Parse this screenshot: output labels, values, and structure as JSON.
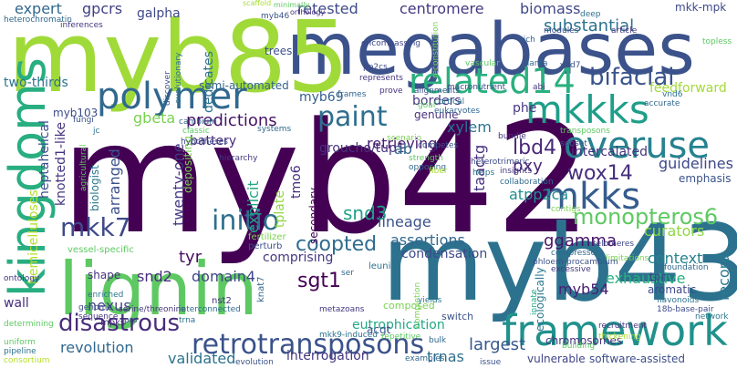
{
  "words": [
    {
      "text": "myb42",
      "color": "#440154"
    },
    {
      "text": "megabases",
      "color": "#3b528b"
    },
    {
      "text": "myb85",
      "color": "#a0da39"
    },
    {
      "text": "myb43",
      "color": "#2c728e"
    },
    {
      "text": "lignin",
      "color": "#5ec962"
    },
    {
      "text": "framework",
      "color": "#21918c"
    },
    {
      "text": "kingdoms",
      "color": "#28ae80"
    },
    {
      "text": "polymer",
      "color": "#31688e"
    },
    {
      "text": "retrotransposons",
      "color": "#3b528b"
    },
    {
      "text": "related14",
      "color": "#2ab07f"
    },
    {
      "text": "mkkks",
      "color": "#1f9e89"
    },
    {
      "text": "overuse",
      "color": "#26828e"
    },
    {
      "text": "mkks",
      "color": "#365c8d"
    },
    {
      "text": "disastrous",
      "color": "#472d7b"
    },
    {
      "text": "initio",
      "color": "#2d708e"
    },
    {
      "text": "paint",
      "color": "#2e6f8e"
    },
    {
      "text": "mkk7",
      "color": "#3e4989"
    },
    {
      "text": "coopted",
      "color": "#2f6c8e"
    },
    {
      "text": "bifacial",
      "color": "#3a548c"
    },
    {
      "text": "monopteros6",
      "color": "#5ec962"
    },
    {
      "text": "wox14",
      "color": "#472f7d"
    },
    {
      "text": "sgt1",
      "color": "#440154"
    },
    {
      "text": "lbd4",
      "color": "#482878"
    },
    {
      "text": "predictions",
      "color": "#471365"
    },
    {
      "text": "expert",
      "color": "#31688e"
    },
    {
      "text": "gpcrs",
      "color": "#424086"
    },
    {
      "text": "galpha",
      "color": "#3f4889"
    },
    {
      "text": "biomass",
      "color": "#3f4788"
    },
    {
      "text": "substantial",
      "color": "#2c728e"
    },
    {
      "text": "retested",
      "color": "#3e4a89"
    },
    {
      "text": "centromere",
      "color": "#453781"
    },
    {
      "text": "mkk-mpk",
      "color": "#3e4989"
    },
    {
      "text": "two-thirds",
      "color": "#2c728e"
    },
    {
      "text": "myb69",
      "color": "#355f8d"
    },
    {
      "text": "groucho/tup1",
      "color": "#46327e"
    },
    {
      "text": "gbeta",
      "color": "#7ad151"
    },
    {
      "text": "battery",
      "color": "#472a7a"
    },
    {
      "text": "myb103",
      "color": "#3e4c8a"
    },
    {
      "text": "heptahelical",
      "color": "#3c4f8a"
    },
    {
      "text": "knotted1-like",
      "color": "#46337e"
    },
    {
      "text": "biologist",
      "color": "#2a788e"
    },
    {
      "text": "arranged",
      "color": "#3b528b"
    },
    {
      "text": "twenty-one",
      "color": "#453882"
    },
    {
      "text": "explicit",
      "color": "#21a685"
    },
    {
      "text": "tmo6",
      "color": "#472c7a"
    },
    {
      "text": "secondary",
      "color": "#440154"
    },
    {
      "text": "retrieving",
      "color": "#481f70"
    },
    {
      "text": "xylem",
      "color": "#2c728e"
    },
    {
      "text": "phe",
      "color": "#453781"
    },
    {
      "text": "intercalated",
      "color": "#46337e"
    },
    {
      "text": "guidelines",
      "color": "#3e4989"
    },
    {
      "text": "emphasis",
      "color": "#3b528b"
    },
    {
      "text": "pxy",
      "color": "#482576"
    },
    {
      "text": "atpp2ca",
      "color": "#228d8d"
    },
    {
      "text": "taactg",
      "color": "#46307e"
    },
    {
      "text": "snd3",
      "color": "#1fa088"
    },
    {
      "text": "lineage",
      "color": "#3b528b"
    },
    {
      "text": "assertions",
      "color": "#31688e"
    },
    {
      "text": "condensation",
      "color": "#3e4989"
    },
    {
      "text": "ggamma",
      "color": "#481467"
    },
    {
      "text": "context",
      "color": "#26828e"
    },
    {
      "text": "record",
      "color": "#2a788e"
    },
    {
      "text": "curators",
      "color": "#8fd744"
    },
    {
      "text": "tyr",
      "color": "#471063"
    },
    {
      "text": "snd2",
      "color": "#472d7b"
    },
    {
      "text": "domain4",
      "color": "#3f4788"
    },
    {
      "text": "nexus",
      "color": "#414487"
    },
    {
      "text": "comprising",
      "color": "#453781"
    },
    {
      "text": "eutrophication",
      "color": "#22a884"
    },
    {
      "text": "revolution",
      "color": "#31688e"
    },
    {
      "text": "validated",
      "color": "#2c728e"
    },
    {
      "text": "interrogation",
      "color": "#453781"
    },
    {
      "text": "largest",
      "color": "#38588c"
    },
    {
      "text": "trnas",
      "color": "#2e6e8e"
    },
    {
      "text": "myb54",
      "color": "#482173"
    },
    {
      "text": "exhaustive",
      "color": "#29af7f"
    },
    {
      "text": "software-assisted",
      "color": "#3d4e8a"
    },
    {
      "text": "vulnerable",
      "color": "#404588"
    },
    {
      "text": "aromatic",
      "color": "#3f4889"
    },
    {
      "text": "hemicelluloses",
      "color": "#b5de2b"
    },
    {
      "text": "wall",
      "color": "#472e7c"
    },
    {
      "text": "feedforward",
      "color": "#a2da37"
    },
    {
      "text": "borders",
      "color": "#453781"
    },
    {
      "text": "genuine",
      "color": "#46327e"
    },
    {
      "text": "semi-automated",
      "color": "#33638d"
    },
    {
      "text": "dedicates",
      "color": "#2c728e"
    },
    {
      "text": "trees",
      "color": "#3b528b"
    },
    {
      "text": "ab",
      "color": "#31688e"
    },
    {
      "text": "tpr",
      "color": "#3e4989"
    },
    {
      "text": "chromosomes",
      "color": "#46327e"
    },
    {
      "text": "ecologically",
      "color": "#2a788e"
    },
    {
      "text": "acgt",
      "color": "#3b528b"
    },
    {
      "text": "shape",
      "color": "#46327e"
    },
    {
      "text": "mpks",
      "color": "#472c7a"
    },
    {
      "text": "vessel-specific",
      "color": "#5ec962"
    },
    {
      "text": "depositing",
      "color": "#7ad151"
    },
    {
      "text": "tplate",
      "color": "#90d743"
    },
    {
      "text": "scaffold",
      "color": "#a8db34"
    },
    {
      "text": "heterochromatin",
      "color": "#31688e"
    },
    {
      "text": "minimally",
      "color": "#5ec962"
    },
    {
      "text": "orthology",
      "color": "#46327e"
    },
    {
      "text": "inferences",
      "color": "#453781"
    },
    {
      "text": "leunig",
      "color": "#2c728e"
    },
    {
      "text": "composed",
      "color": "#7ad151"
    },
    {
      "text": "switch",
      "color": "#3b528b"
    },
    {
      "text": "consortium",
      "color": "#b5de2b"
    },
    {
      "text": "pipeline",
      "color": "#2c728e"
    },
    {
      "text": "uniform",
      "color": "#5ec962"
    },
    {
      "text": "telomeres",
      "color": "#3e4989"
    },
    {
      "text": "corepressors",
      "color": "#31688e"
    },
    {
      "text": "limitations",
      "color": "#7ad151"
    },
    {
      "text": "excessive",
      "color": "#453781"
    },
    {
      "text": "phloem-procambium",
      "color": "#3b528b"
    },
    {
      "text": "foundation",
      "color": "#31688e"
    },
    {
      "text": "flavonoids",
      "color": "#2c728e"
    },
    {
      "text": "18b-base-pair",
      "color": "#3e4989"
    },
    {
      "text": "network",
      "color": "#2a788e"
    },
    {
      "text": "recruitment",
      "color": "#453781"
    },
    {
      "text": "thickening",
      "color": "#a8db34"
    },
    {
      "text": "building",
      "color": "#5ec962"
    },
    {
      "text": "innate",
      "color": "#22a884"
    },
    {
      "text": "issue",
      "color": "#3b528b"
    },
    {
      "text": "completion",
      "color": "#7ad151"
    },
    {
      "text": "bulk",
      "color": "#31688e"
    },
    {
      "text": "metazoans",
      "color": "#453781"
    },
    {
      "text": "mkk9-induced",
      "color": "#2c728e"
    },
    {
      "text": "repetitive",
      "color": "#5ec962"
    },
    {
      "text": "examples",
      "color": "#31688e"
    },
    {
      "text": "evolution",
      "color": "#3b528b"
    },
    {
      "text": "serine/threonine",
      "color": "#46327e"
    },
    {
      "text": "enriched",
      "color": "#2a788e"
    },
    {
      "text": "genome",
      "color": "#3e4989"
    },
    {
      "text": "sequence",
      "color": "#453781"
    },
    {
      "text": "interconnected",
      "color": "#31688e"
    },
    {
      "text": "trna",
      "color": "#2c728e"
    },
    {
      "text": "determining",
      "color": "#5ec962"
    },
    {
      "text": "pro",
      "color": "#3b528b"
    },
    {
      "text": "nst2",
      "color": "#46327e"
    },
    {
      "text": "knat7",
      "color": "#31688e"
    },
    {
      "text": "fertilizer",
      "color": "#7ad151"
    },
    {
      "text": "perturb",
      "color": "#3b528b"
    },
    {
      "text": "yields",
      "color": "#2a788e"
    },
    {
      "text": "macronutrient",
      "color": "#3e4989"
    },
    {
      "text": "abi",
      "color": "#453781"
    },
    {
      "text": "cortical",
      "color": "#2c728e"
    },
    {
      "text": "eukaryotes",
      "color": "#31688e"
    },
    {
      "text": "goal",
      "color": "#5ec962"
    },
    {
      "text": "alignments",
      "color": "#3b528b"
    },
    {
      "text": "prove",
      "color": "#46327e"
    },
    {
      "text": "frames",
      "color": "#31688e"
    },
    {
      "text": "pp2cs",
      "color": "#3e4989"
    },
    {
      "text": "represents",
      "color": "#453781"
    },
    {
      "text": "planta",
      "color": "#31688e"
    },
    {
      "text": "vnd7",
      "color": "#3b528b"
    },
    {
      "text": "vnd6",
      "color": "#2c728e"
    },
    {
      "text": "vascular",
      "color": "#5ec962"
    },
    {
      "text": "reconstitution",
      "color": "#7ad151"
    },
    {
      "text": "fungi",
      "color": "#3b528b"
    },
    {
      "text": "cambium",
      "color": "#31688e"
    },
    {
      "text": "classic",
      "color": "#5ec962"
    },
    {
      "text": "hypotheses",
      "color": "#3e4989"
    },
    {
      "text": "hierarchy",
      "color": "#453781"
    },
    {
      "text": "systems",
      "color": "#31688e"
    },
    {
      "text": "discover",
      "color": "#3b528b"
    },
    {
      "text": "evolutionary",
      "color": "#2c728e"
    },
    {
      "text": "agricultural",
      "color": "#5ec962"
    },
    {
      "text": "scenario",
      "color": "#7ad151"
    },
    {
      "text": "competes",
      "color": "#3b528b"
    },
    {
      "text": "strength",
      "color": "#5ec962"
    },
    {
      "text": "opposing",
      "color": "#31688e"
    },
    {
      "text": "fiber",
      "color": "#a8db34"
    },
    {
      "text": "heterotrimeric",
      "color": "#3e4989"
    },
    {
      "text": "insights",
      "color": "#453781"
    },
    {
      "text": "helps",
      "color": "#2c728e"
    },
    {
      "text": "collaboration",
      "color": "#31688e"
    },
    {
      "text": "subset",
      "color": "#3b528b"
    },
    {
      "text": "transposons",
      "color": "#5ec962"
    },
    {
      "text": "bundle",
      "color": "#46327e"
    },
    {
      "text": "contigs",
      "color": "#7ad151"
    },
    {
      "text": "accurate",
      "color": "#31688e"
    },
    {
      "text": "modules",
      "color": "#3b528b"
    },
    {
      "text": "article",
      "color": "#453781"
    },
    {
      "text": "deep",
      "color": "#2c728e"
    },
    {
      "text": "rich",
      "color": "#31688e"
    },
    {
      "text": "topless",
      "color": "#5ec962"
    },
    {
      "text": "encompassing",
      "color": "#3e4989"
    },
    {
      "text": "myb46",
      "color": "#3b528b"
    },
    {
      "text": "ser",
      "color": "#31688e"
    },
    {
      "text": "ontology",
      "color": "#453781"
    },
    {
      "text": "jc",
      "color": "#2c728e"
    }
  ]
}
